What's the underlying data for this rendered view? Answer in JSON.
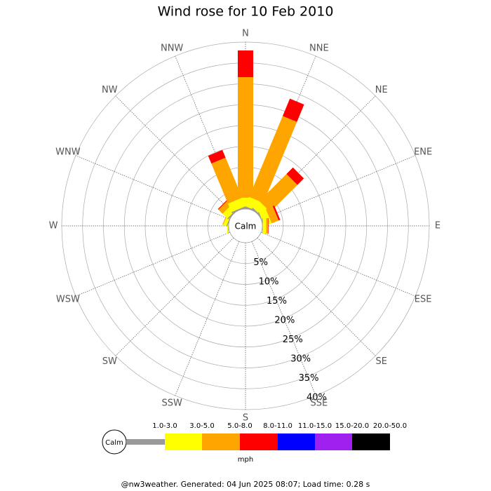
{
  "chart_data": {
    "type": "windrose",
    "title": "Wind rose for 10 Feb 2010",
    "directions": [
      "N",
      "NNE",
      "NE",
      "ENE",
      "E",
      "ESE",
      "SE",
      "SSE",
      "S",
      "SSW",
      "SW",
      "WSW",
      "W",
      "WNW",
      "NW",
      "NNW"
    ],
    "calm_label": "Calm",
    "series": [
      {
        "name": "1.0-3.0",
        "color": "#999999",
        "values": [
          0.3,
          0.3,
          0.3,
          0.2,
          0.1,
          0,
          0,
          0,
          0,
          0,
          0,
          0,
          0.1,
          0.2,
          0.3,
          0.3
        ]
      },
      {
        "name": "3.0-5.0",
        "color": "#ffff00",
        "values": [
          2.4,
          2.4,
          2.2,
          1.8,
          0.8,
          0,
          0,
          0,
          0,
          0,
          0,
          0,
          0.3,
          0.8,
          1.6,
          2.2
        ]
      },
      {
        "name": "5.0-8.0",
        "color": "#ffa500",
        "values": [
          28.9,
          21,
          9.2,
          1.8,
          0.5,
          0,
          0,
          0,
          0,
          0,
          0,
          0,
          0,
          0.2,
          1.4,
          10.4
        ]
      },
      {
        "name": "8.0-11.0",
        "color": "#ff0000",
        "values": [
          6.4,
          4.5,
          2.2,
          0.4,
          0.1,
          0,
          0,
          0,
          0,
          0,
          0,
          0,
          0,
          0,
          0.2,
          2
        ]
      },
      {
        "name": "11.0-15.0",
        "color": "#0000ff",
        "values": [
          0,
          0,
          0,
          0,
          0,
          0,
          0,
          0,
          0,
          0,
          0,
          0,
          0,
          0,
          0,
          0
        ]
      },
      {
        "name": "15.0-20.0",
        "color": "#a020f0",
        "values": [
          0,
          0,
          0,
          0,
          0,
          0,
          0,
          0,
          0,
          0,
          0,
          0,
          0,
          0,
          0,
          0
        ]
      },
      {
        "name": "20.0-50.0",
        "color": "#000000",
        "values": [
          0,
          0,
          0,
          0,
          0,
          0,
          0,
          0,
          0,
          0,
          0,
          0,
          0,
          0,
          0,
          0
        ]
      }
    ],
    "rlim": [
      0,
      40
    ],
    "rticks": [
      {
        "value": 5,
        "label": "5%"
      },
      {
        "value": 10,
        "label": "10%"
      },
      {
        "value": 15,
        "label": "15%"
      },
      {
        "value": 20,
        "label": "20%"
      },
      {
        "value": 25,
        "label": "25%"
      },
      {
        "value": 30,
        "label": "30%"
      },
      {
        "value": 35,
        "label": "35%"
      },
      {
        "value": 40,
        "label": "40%"
      }
    ],
    "unit": "mph",
    "footer": "@nw3weather. Generated: 04 Jun 2025 08:07; Load time: 0.28 s"
  }
}
